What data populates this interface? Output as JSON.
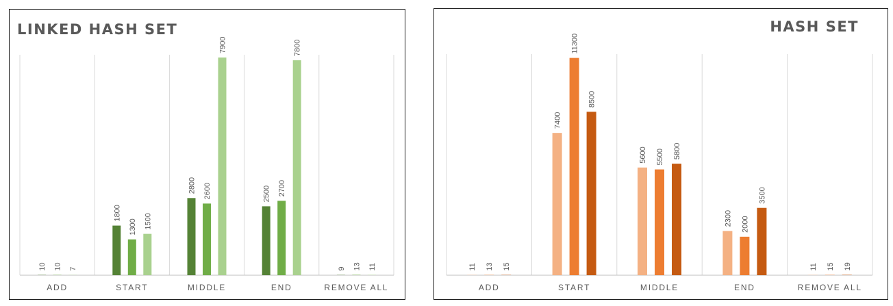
{
  "chart_data": [
    {
      "type": "bar",
      "title": "LINKED HASH SET",
      "categories": [
        "ADD",
        "START",
        "MIDDLE",
        "END",
        "REMOVE ALL"
      ],
      "series": [
        {
          "values": [
            10,
            1800,
            2800,
            2500,
            9
          ],
          "color": "#548235"
        },
        {
          "values": [
            10,
            1300,
            2600,
            2700,
            13
          ],
          "color": "#70ad47"
        },
        {
          "values": [
            7,
            1500,
            7900,
            7800,
            11
          ],
          "color": "#a9d18e"
        }
      ],
      "ylim": [
        0,
        8000
      ],
      "grid": "vertical category separators",
      "legend": "none"
    },
    {
      "type": "bar",
      "title": "HASH SET",
      "categories": [
        "ADD",
        "START",
        "MIDDLE",
        "END",
        "REMOVE ALL"
      ],
      "series": [
        {
          "values": [
            11,
            7400,
            5600,
            2300,
            11
          ],
          "color": "#f4b183"
        },
        {
          "values": [
            13,
            11300,
            5500,
            2000,
            15
          ],
          "color": "#ed7d31"
        },
        {
          "values": [
            15,
            8500,
            5800,
            3500,
            19
          ],
          "color": "#c55a11"
        }
      ],
      "ylim": [
        0,
        11500
      ],
      "grid": "vertical category separators",
      "legend": "none"
    }
  ]
}
